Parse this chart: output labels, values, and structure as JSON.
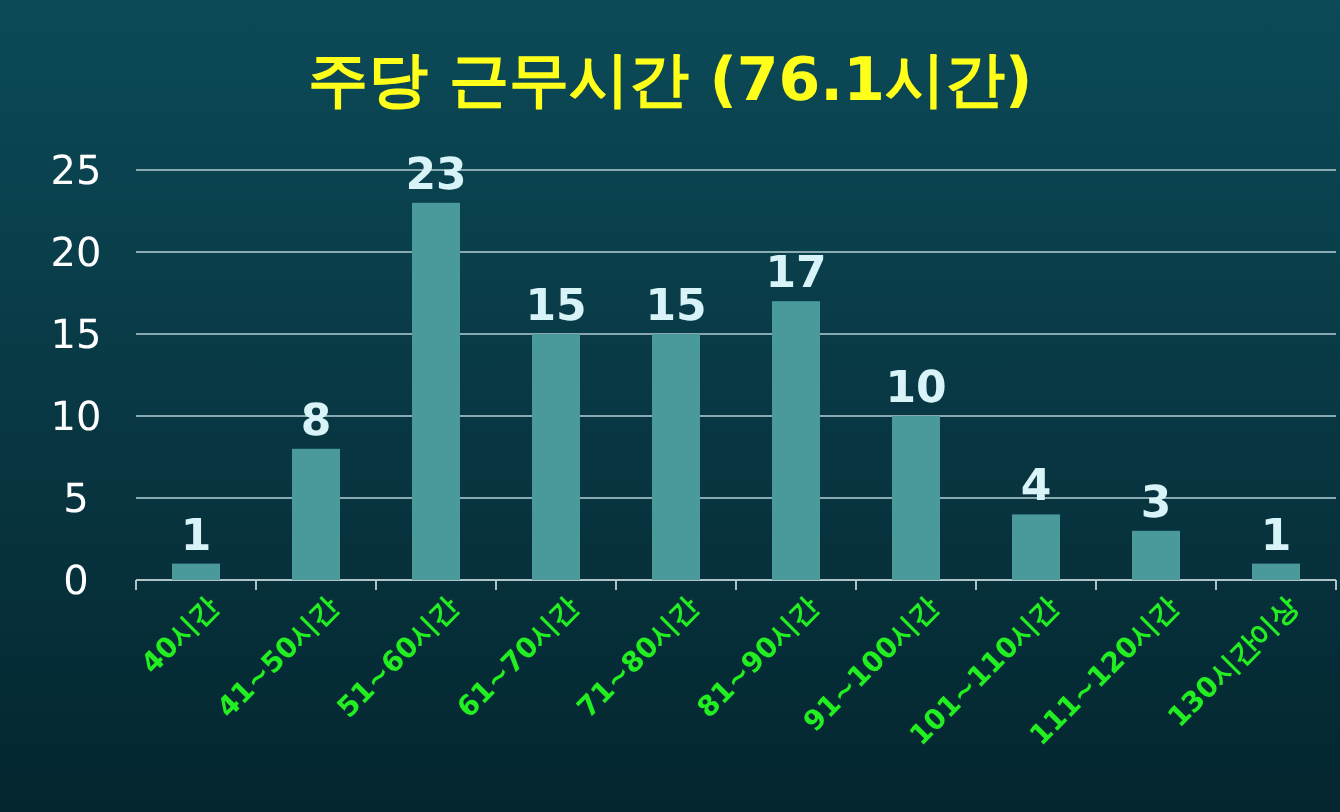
{
  "chart_data": {
    "type": "bar",
    "title": "주당 근무시간 (76.1시간)",
    "categories": [
      "40시간",
      "41~50시간",
      "51~60시간",
      "61~70시간",
      "71~80시간",
      "81~90시간",
      "91~100시간",
      "101~110시간",
      "111~120시간",
      "130시간이상"
    ],
    "values": [
      1,
      8,
      23,
      15,
      15,
      17,
      10,
      4,
      3,
      1
    ],
    "color": "#4a9a9c",
    "ylim": [
      0,
      25
    ],
    "yticks": [
      0,
      5,
      10,
      15,
      20,
      25
    ],
    "grid": "y",
    "data_labels": true
  }
}
